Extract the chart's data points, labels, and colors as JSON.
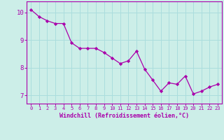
{
  "x": [
    0,
    1,
    2,
    3,
    4,
    5,
    6,
    7,
    8,
    9,
    10,
    11,
    12,
    13,
    14,
    15,
    16,
    17,
    18,
    19,
    20,
    21,
    22,
    23
  ],
  "y": [
    10.1,
    9.85,
    9.7,
    9.6,
    9.6,
    8.9,
    8.7,
    8.7,
    8.7,
    8.55,
    8.35,
    8.15,
    8.25,
    8.6,
    7.95,
    7.55,
    7.15,
    7.45,
    7.4,
    7.7,
    7.05,
    7.15,
    7.3,
    7.4
  ],
  "line_color": "#aa00aa",
  "marker_color": "#aa00aa",
  "bg_color": "#cceee8",
  "grid_color": "#aadddd",
  "axis_label_color": "#aa00aa",
  "tick_color": "#aa00aa",
  "xlabel": "Windchill (Refroidissement éolien,°C)",
  "xlim": [
    -0.5,
    23.5
  ],
  "ylim": [
    6.7,
    10.4
  ],
  "yticks": [
    7,
    8,
    9,
    10
  ],
  "xticks": [
    0,
    1,
    2,
    3,
    4,
    5,
    6,
    7,
    8,
    9,
    10,
    11,
    12,
    13,
    14,
    15,
    16,
    17,
    18,
    19,
    20,
    21,
    22,
    23
  ]
}
